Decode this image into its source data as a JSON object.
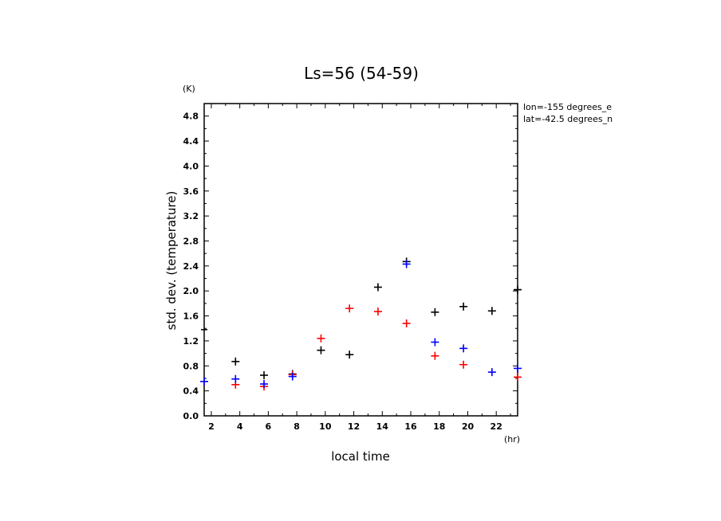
{
  "chart_data": {
    "type": "scatter",
    "title": "Ls=56 (54-59)",
    "xlabel": "local time",
    "ylabel": "std. dev. (temperature)",
    "xunit": "(hr)",
    "yunit": "(K)",
    "xlim": [
      1.5,
      23.5
    ],
    "ylim": [
      0,
      5
    ],
    "xticks": [
      2,
      4,
      6,
      8,
      10,
      12,
      14,
      16,
      18,
      20,
      22
    ],
    "yticks": [
      "0.0",
      "0.4",
      "0.8",
      "1.2",
      "1.6",
      "2.0",
      "2.4",
      "2.8",
      "3.2",
      "3.6",
      "4.0",
      "4.4",
      "4.8"
    ],
    "annotations": [
      "lon=-155 degrees_e",
      "lat=-42.5 degrees_n"
    ],
    "grid": false,
    "series": [
      {
        "color": "#000000",
        "points": [
          [
            3.7,
            0.87
          ],
          [
            5.7,
            0.65
          ],
          [
            7.7,
            0.67
          ],
          [
            9.7,
            1.05
          ],
          [
            11.7,
            0.98
          ],
          [
            13.7,
            2.06
          ],
          [
            15.7,
            2.47
          ],
          [
            17.7,
            1.66
          ],
          [
            19.7,
            1.75
          ],
          [
            21.7,
            1.68
          ],
          [
            23.5,
            2.02
          ]
        ]
      },
      {
        "color": "#ff0000",
        "points": [
          [
            3.7,
            0.5
          ],
          [
            5.7,
            0.47
          ],
          [
            7.7,
            0.66
          ],
          [
            9.7,
            1.24
          ],
          [
            11.7,
            1.72
          ],
          [
            13.7,
            1.67
          ],
          [
            15.7,
            1.48
          ],
          [
            17.7,
            0.96
          ],
          [
            19.7,
            0.82
          ],
          [
            23.5,
            0.62
          ]
        ]
      },
      {
        "color": "#0000ff",
        "points": [
          [
            1.5,
            0.55
          ],
          [
            3.7,
            0.59
          ],
          [
            5.7,
            0.51
          ],
          [
            7.7,
            0.63
          ],
          [
            15.7,
            2.43
          ],
          [
            17.7,
            1.18
          ],
          [
            19.7,
            1.08
          ],
          [
            21.7,
            0.7
          ],
          [
            23.5,
            0.76
          ]
        ]
      }
    ],
    "edge_tick_marks": [
      {
        "side": "left",
        "value": 1.38
      },
      {
        "side": "right",
        "value": 2.02
      }
    ]
  }
}
